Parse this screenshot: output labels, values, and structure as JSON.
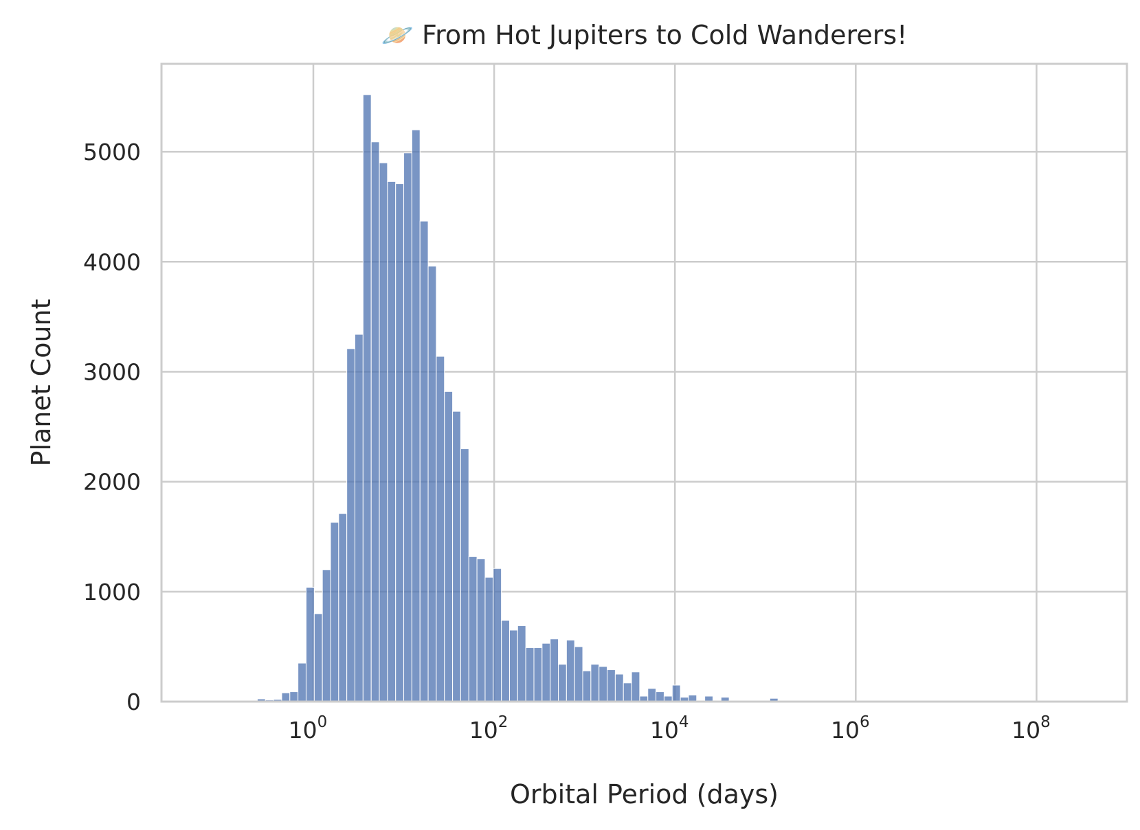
{
  "chart_data": {
    "type": "bar",
    "title": "🪐 From Hot Jupiters to Cold Wanderers!",
    "xlabel": "Orbital Period (days)",
    "ylabel": "Planet Count",
    "x_scale": "log",
    "x_ticks": [
      {
        "value": 1,
        "base": "10",
        "exp": "0"
      },
      {
        "value": 100,
        "base": "10",
        "exp": "2"
      },
      {
        "value": 10000,
        "base": "10",
        "exp": "4"
      },
      {
        "value": 1000000,
        "base": "10",
        "exp": "6"
      },
      {
        "value": 100000000,
        "base": "10",
        "exp": "8"
      }
    ],
    "xlim": [
      0.0209,
      1000000000
    ],
    "y_ticks": [
      "0",
      "1000",
      "2000",
      "3000",
      "4000",
      "5000"
    ],
    "ylim": [
      0,
      5800
    ],
    "grid": true,
    "bar_color": "#4c72b0",
    "bin_edges_log10": [
      -0.71,
      -0.62,
      -0.53,
      -0.44,
      -0.35,
      -0.26,
      -0.17,
      -0.08,
      0.01,
      0.1,
      0.19,
      0.28,
      0.37,
      0.46,
      0.55,
      0.64,
      0.73,
      0.82,
      0.91,
      1.0,
      1.09,
      1.18,
      1.27,
      1.36,
      1.45,
      1.54,
      1.63,
      1.72,
      1.81,
      1.9,
      1.99,
      2.08,
      2.17,
      2.26,
      2.35,
      2.44,
      2.53,
      2.62,
      2.71,
      2.8,
      2.89,
      2.98,
      3.07,
      3.16,
      3.25,
      3.34,
      3.43,
      3.52,
      3.61,
      3.7,
      3.79,
      3.88,
      3.97,
      4.06,
      4.15,
      4.24,
      4.33,
      4.42,
      4.51,
      4.6,
      4.69,
      4.78,
      4.87,
      4.96,
      5.05,
      5.14,
      5.23,
      5.32,
      5.41,
      5.5,
      5.59
    ],
    "counts": [
      10,
      25,
      15,
      20,
      80,
      90,
      350,
      1040,
      800,
      1200,
      1630,
      1710,
      3210,
      3340,
      5520,
      5090,
      4900,
      4730,
      4710,
      4990,
      5200,
      4370,
      3960,
      3140,
      2820,
      2640,
      2300,
      1320,
      1300,
      1130,
      1210,
      740,
      650,
      690,
      490,
      490,
      530,
      570,
      340,
      560,
      500,
      280,
      340,
      320,
      290,
      250,
      170,
      270,
      50,
      120,
      90,
      50,
      150,
      40,
      60,
      10,
      50,
      10,
      40,
      10,
      10,
      10,
      10,
      10,
      30,
      10,
      10,
      10,
      10,
      10
    ]
  }
}
